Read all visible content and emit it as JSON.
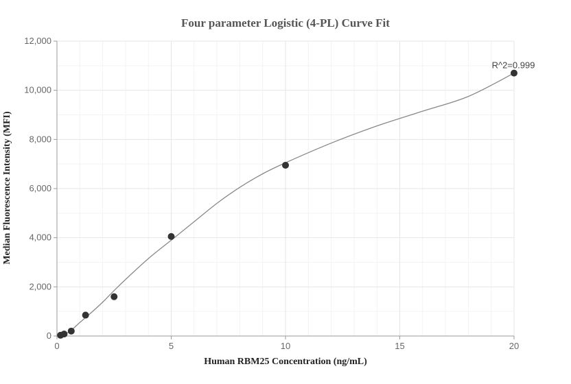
{
  "chart_data": {
    "type": "scatter",
    "title": "Four parameter Logistic (4-PL) Curve Fit",
    "xlabel": "Human RBM25 Concentration (ng/mL)",
    "ylabel": "Median Fluorescence Intensity (MFI)",
    "xlim": [
      0,
      20
    ],
    "ylim": [
      0,
      12000
    ],
    "x_ticks": [
      0,
      5,
      10,
      15,
      20
    ],
    "x_tick_labels": [
      "0",
      "5",
      "10",
      "15",
      "20"
    ],
    "y_ticks": [
      0,
      2000,
      4000,
      6000,
      8000,
      10000,
      12000
    ],
    "y_tick_labels": [
      "0",
      "2,000",
      "4,000",
      "6,000",
      "8,000",
      "10,000",
      "12,000"
    ],
    "grid": true,
    "points": {
      "x": [
        0.156,
        0.313,
        0.625,
        1.25,
        2.5,
        5,
        10,
        20
      ],
      "y": [
        30,
        80,
        200,
        850,
        1600,
        4050,
        6950,
        10700
      ]
    },
    "fit_curve": {
      "model": "4-PL",
      "x": [
        0,
        0.5,
        1,
        1.5,
        2,
        2.5,
        3,
        4,
        5,
        6,
        7,
        8,
        9,
        10,
        12,
        14,
        16,
        18,
        20
      ],
      "y": [
        0,
        150,
        550,
        950,
        1380,
        1850,
        2300,
        3150,
        3900,
        4650,
        5400,
        6050,
        6600,
        7050,
        7850,
        8550,
        9150,
        9750,
        10700
      ]
    },
    "annotation": {
      "text": "R^2=0.999",
      "x": 20,
      "y": 10700
    }
  }
}
